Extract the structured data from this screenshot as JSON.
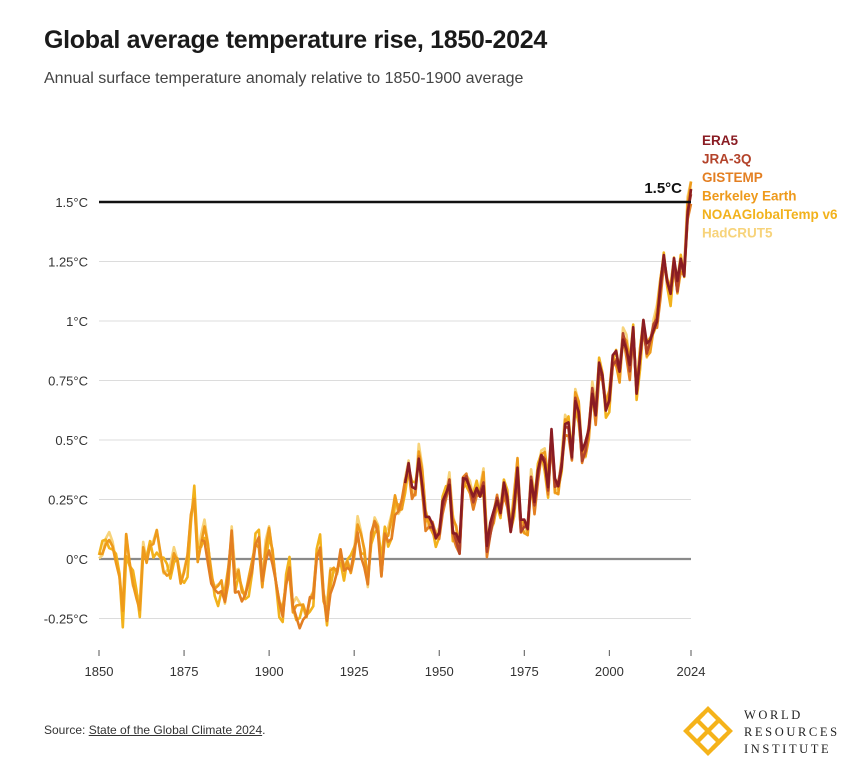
{
  "header": {
    "title": "Global average temperature rise, 1850-2024",
    "subtitle": "Annual surface temperature anomaly relative to 1850-1900 average"
  },
  "footer": {
    "source_prefix": "Source: ",
    "source_link": "State of the Global Climate 2024",
    "source_suffix": "."
  },
  "logo": {
    "line1": "WORLD",
    "line2": "RESOURCES",
    "line3": "INSTITUTE",
    "color": "#F5B31A"
  },
  "chart_data": {
    "type": "line",
    "title": "Global average temperature rise, 1850-2024",
    "subtitle": "Annual surface temperature anomaly relative to 1850-1900 average",
    "xlabel": "",
    "ylabel": "",
    "xlim": [
      1850,
      2024
    ],
    "ylim": [
      -0.35,
      1.62
    ],
    "xticks": [
      1850,
      1875,
      1900,
      1925,
      1950,
      1975,
      2000,
      2024
    ],
    "xtick_labels": [
      "1850",
      "1875",
      "1900",
      "1925",
      "1950",
      "1975",
      "2000",
      "2024"
    ],
    "yticks": [
      -0.25,
      0,
      0.25,
      0.5,
      0.75,
      1,
      1.25,
      1.5
    ],
    "ytick_labels": [
      "-0.25°C",
      "0°C",
      "0.25°C",
      "0.5°C",
      "0.75°C",
      "1°C",
      "1.25°C",
      "1.5°C"
    ],
    "grid": "horizontal",
    "legend_placement": "right",
    "reference_line": {
      "value": 1.5,
      "label": "1.5°C",
      "color": "#111111"
    },
    "zero_line_color": "#8a8a8a",
    "anchors": {
      "x": [
        1850,
        1851,
        1852,
        1853,
        1854,
        1855,
        1856,
        1857,
        1858,
        1859,
        1860,
        1861,
        1862,
        1863,
        1864,
        1865,
        1866,
        1867,
        1868,
        1869,
        1870,
        1871,
        1872,
        1873,
        1874,
        1875,
        1876,
        1877,
        1878,
        1879,
        1880,
        1881,
        1882,
        1883,
        1884,
        1885,
        1886,
        1887,
        1888,
        1889,
        1890,
        1891,
        1892,
        1893,
        1894,
        1895,
        1896,
        1897,
        1898,
        1899,
        1900,
        1901,
        1902,
        1903,
        1904,
        1905,
        1906,
        1907,
        1908,
        1909,
        1910,
        1911,
        1912,
        1913,
        1914,
        1915,
        1916,
        1917,
        1918,
        1919,
        1920,
        1921,
        1922,
        1923,
        1924,
        1925,
        1926,
        1927,
        1928,
        1929,
        1930,
        1931,
        1932,
        1933,
        1934,
        1935,
        1936,
        1937,
        1938,
        1939,
        1940,
        1941,
        1942,
        1943,
        1944,
        1945,
        1946,
        1947,
        1948,
        1949,
        1950,
        1951,
        1952,
        1953,
        1954,
        1955,
        1956,
        1957,
        1958,
        1959,
        1960,
        1961,
        1962,
        1963,
        1964,
        1965,
        1966,
        1967,
        1968,
        1969,
        1970,
        1971,
        1972,
        1973,
        1974,
        1975,
        1976,
        1977,
        1978,
        1979,
        1980,
        1981,
        1982,
        1983,
        1984,
        1985,
        1986,
        1987,
        1988,
        1989,
        1990,
        1991,
        1992,
        1993,
        1994,
        1995,
        1996,
        1997,
        1998,
        1999,
        2000,
        2001,
        2002,
        2003,
        2004,
        2005,
        2006,
        2007,
        2008,
        2009,
        2010,
        2011,
        2012,
        2013,
        2014,
        2015,
        2016,
        2017,
        2018,
        2019,
        2020,
        2021,
        2022,
        2023,
        2024
      ],
      "y": [
        0.02,
        0.07,
        0.1,
        0.07,
        0.03,
        -0.01,
        -0.06,
        -0.24,
        0.06,
        -0.02,
        -0.06,
        -0.12,
        -0.22,
        0.02,
        -0.02,
        0.07,
        0.05,
        0.08,
        0.02,
        -0.01,
        -0.02,
        -0.06,
        -0.01,
        -0.02,
        -0.09,
        -0.06,
        -0.02,
        0.17,
        0.29,
        0.04,
        0.07,
        0.1,
        0.04,
        -0.06,
        -0.12,
        -0.14,
        -0.11,
        -0.15,
        -0.05,
        0.11,
        -0.12,
        -0.08,
        -0.13,
        -0.14,
        -0.1,
        -0.03,
        0.09,
        0.1,
        -0.1,
        0.01,
        0.09,
        0.03,
        -0.08,
        -0.19,
        -0.23,
        -0.08,
        -0.02,
        -0.2,
        -0.23,
        -0.24,
        -0.2,
        -0.22,
        -0.17,
        -0.16,
        0.03,
        0.07,
        -0.15,
        -0.25,
        -0.1,
        -0.05,
        -0.03,
        0.03,
        -0.05,
        -0.01,
        -0.02,
        0.04,
        0.12,
        0.05,
        0.02,
        -0.08,
        0.1,
        0.15,
        0.13,
        -0.04,
        0.12,
        0.08,
        0.12,
        0.24,
        0.23,
        0.24,
        0.32,
        0.39,
        0.29,
        0.3,
        0.44,
        0.32,
        0.17,
        0.17,
        0.15,
        0.09,
        0.1,
        0.23,
        0.28,
        0.33,
        0.12,
        0.1,
        0.06,
        0.34,
        0.34,
        0.29,
        0.25,
        0.3,
        0.28,
        0.32,
        0.05,
        0.14,
        0.2,
        0.25,
        0.19,
        0.31,
        0.26,
        0.13,
        0.23,
        0.38,
        0.15,
        0.16,
        0.13,
        0.33,
        0.23,
        0.37,
        0.45,
        0.42,
        0.3,
        0.53,
        0.33,
        0.31,
        0.39,
        0.56,
        0.57,
        0.44,
        0.68,
        0.62,
        0.44,
        0.48,
        0.55,
        0.7,
        0.6,
        0.82,
        0.78,
        0.64,
        0.67,
        0.84,
        0.86,
        0.79,
        0.93,
        0.88,
        0.81,
        0.98,
        0.71,
        0.85,
        0.99,
        0.89,
        0.92,
        0.97,
        1.0,
        1.15,
        1.28,
        1.18,
        1.12,
        1.25,
        1.15,
        1.26,
        1.2,
        1.45,
        1.55
      ]
    },
    "series": [
      {
        "name": "ERA5",
        "color": "#8A1C23",
        "start": 1940,
        "offset": 0.0,
        "wiggle": 0.012
      },
      {
        "name": "JRA-3Q",
        "color": "#B3432A",
        "start": 1947,
        "offset": -0.01,
        "wiggle": 0.018
      },
      {
        "name": "GISTEMP",
        "color": "#E37F22",
        "start": 1880,
        "offset": -0.02,
        "wiggle": 0.025
      },
      {
        "name": "Berkeley Earth",
        "color": "#EE9A1B",
        "start": 1850,
        "offset": 0.0,
        "wiggle": 0.035
      },
      {
        "name": "NOAAGlobalTemp v6",
        "color": "#F2B21C",
        "start": 1850,
        "offset": -0.01,
        "wiggle": 0.03
      },
      {
        "name": "HadCRUT5",
        "color": "#F7D37A",
        "start": 1850,
        "offset": 0.01,
        "wiggle": 0.04
      }
    ]
  }
}
